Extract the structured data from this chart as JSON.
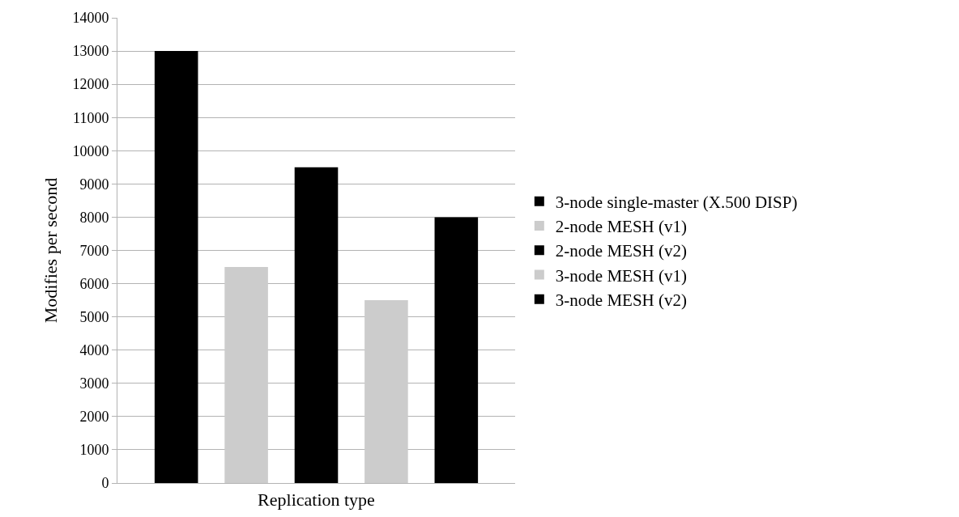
{
  "chart_data": {
    "type": "bar",
    "xlabel": "Replication type",
    "ylabel": "Modifies per second",
    "categories": [
      null
    ],
    "series": [
      {
        "name": "3-node single-master (X.500 DISP)",
        "color": "#000000",
        "values": [
          13000
        ]
      },
      {
        "name": "2-node MESH (v1)",
        "color": "#cccccc",
        "values": [
          6500
        ]
      },
      {
        "name": "2-node MESH (v2)",
        "color": "#000000",
        "values": [
          9500
        ]
      },
      {
        "name": "3-node MESH (v1)",
        "color": "#cccccc",
        "values": [
          5500
        ]
      },
      {
        "name": "3-node MESH (v2)",
        "color": "#000000",
        "values": [
          8000
        ]
      }
    ],
    "ylim": [
      0,
      14000
    ],
    "yticks": [
      0,
      1000,
      2000,
      3000,
      4000,
      5000,
      6000,
      7000,
      8000,
      9000,
      10000,
      11000,
      12000,
      13000,
      14000
    ],
    "grid": true,
    "legend": "right"
  }
}
